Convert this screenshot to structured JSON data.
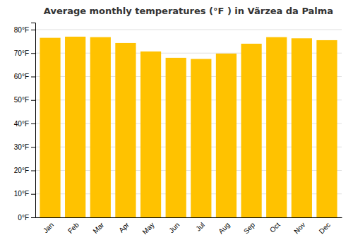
{
  "chart_data": {
    "type": "bar",
    "title": "Average monthly temperatures (°F ) in Vãrzea da Palma",
    "categories": [
      "Jan",
      "Feb",
      "Mar",
      "Apr",
      "May",
      "Jun",
      "Jul",
      "Aug",
      "Sep",
      "Oct",
      "Nov",
      "Dec"
    ],
    "values": [
      76.5,
      77.0,
      76.8,
      74.3,
      70.7,
      68.0,
      67.5,
      69.8,
      74.0,
      76.8,
      76.3,
      75.5
    ],
    "color": "#FFC200",
    "ylim": [
      0,
      83
    ],
    "yticks": [
      {
        "value": 0,
        "label": "0°F"
      },
      {
        "value": 10,
        "label": "10°F"
      },
      {
        "value": 20,
        "label": "20°F"
      },
      {
        "value": 30,
        "label": "30°F"
      },
      {
        "value": 40,
        "label": "40°F"
      },
      {
        "value": 50,
        "label": "50°F"
      },
      {
        "value": 60,
        "label": "60°F"
      },
      {
        "value": 70,
        "label": "70°F"
      },
      {
        "value": 80,
        "label": "80°F"
      }
    ],
    "grid": true
  }
}
